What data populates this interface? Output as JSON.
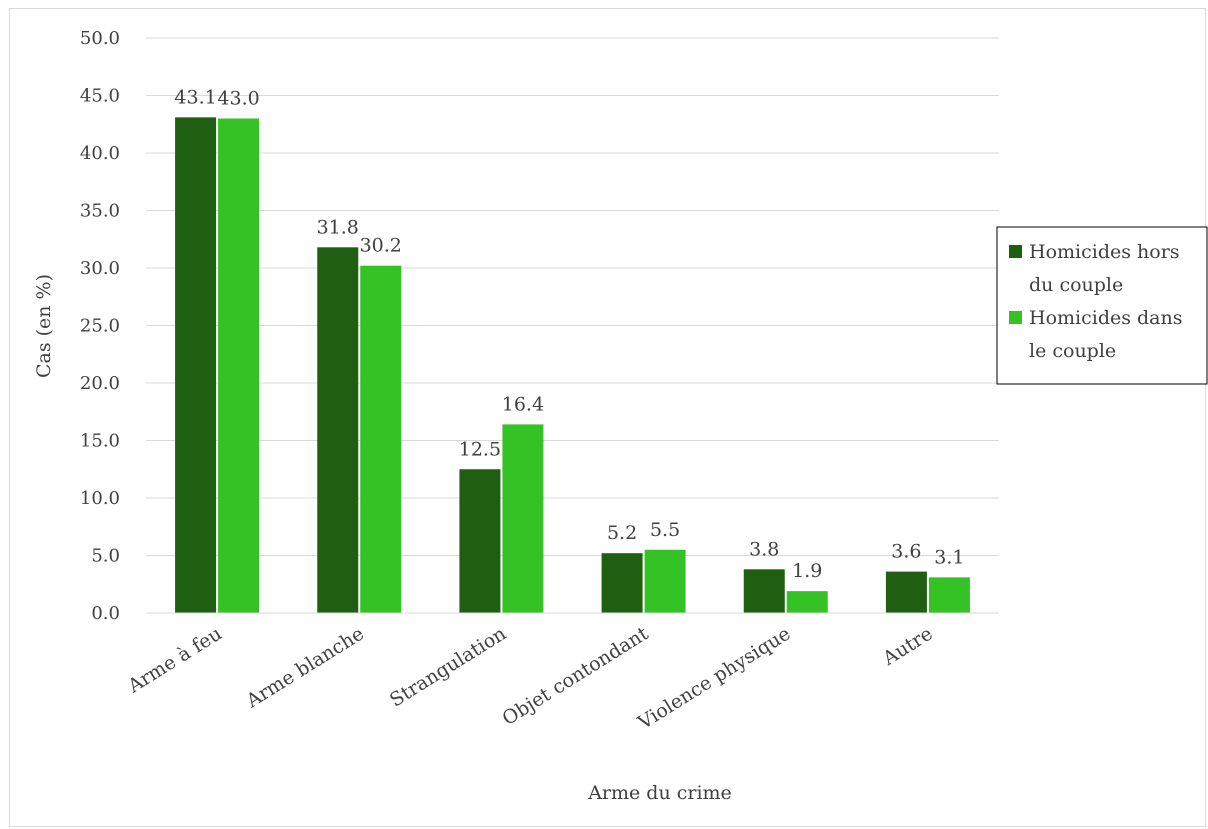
{
  "chart_data": {
    "type": "bar",
    "title": "",
    "xlabel": "Arme du crime",
    "ylabel": "Cas (en %)",
    "ylim": [
      0,
      50
    ],
    "yticks": [
      "0.0",
      "5.0",
      "10.0",
      "15.0",
      "20.0",
      "25.0",
      "30.0",
      "35.0",
      "40.0",
      "45.0",
      "50.0"
    ],
    "grid": true,
    "legend_position": "right",
    "categories": [
      "Arme à feu",
      "Arme blanche",
      "Strangulation",
      "Objet contondant",
      "Violence physique",
      "Autre"
    ],
    "series": [
      {
        "name": "Homicides hors du couple",
        "legend_lines": [
          "Homicides hors",
          "du couple"
        ],
        "color": "#1e5f12",
        "values": [
          43.1,
          31.8,
          12.5,
          5.2,
          3.8,
          3.6
        ],
        "labels": [
          "43.1",
          "31.8",
          "12.5",
          "5.2",
          "3.8",
          "3.6"
        ]
      },
      {
        "name": "Homicides dans le couple",
        "legend_lines": [
          "Homicides dans",
          "le couple"
        ],
        "color": "#35c225",
        "values": [
          43.0,
          30.2,
          16.4,
          5.5,
          1.9,
          3.1
        ],
        "labels": [
          "43.0",
          "30.2",
          "16.4",
          "5.5",
          "1.9",
          "3.1"
        ]
      }
    ]
  }
}
